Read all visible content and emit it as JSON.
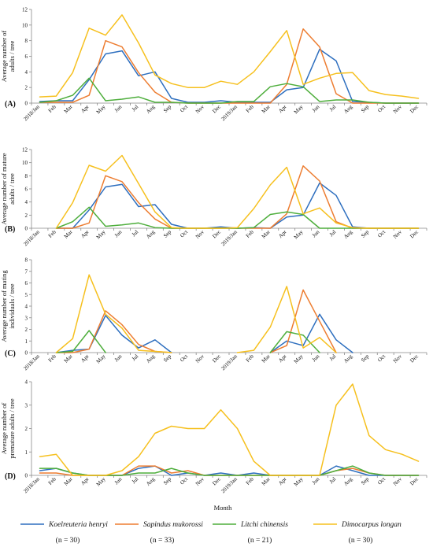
{
  "chart_data": [
    {
      "type": "line",
      "panel_label": "(A)",
      "ylabel": "Average number of adults / tree",
      "ylim": [
        0,
        12
      ],
      "yticks": [
        0,
        2,
        4,
        6,
        8,
        10,
        12
      ],
      "x": [
        "2018/Jan",
        "Feb",
        "Mar",
        "Apr",
        "May",
        "Jun",
        "Jul",
        "Aug",
        "Sep",
        "Oct",
        "Nov",
        "Dec",
        "2019/Jan",
        "Feb",
        "Mar",
        "Apr",
        "May",
        "Jun",
        "Jul",
        "Aug",
        "Sep",
        "Oct",
        "Nov",
        "Dec"
      ],
      "series": [
        {
          "name": "Koelreuteria henryi",
          "values": [
            0.2,
            0.3,
            0.3,
            3.0,
            6.3,
            6.7,
            3.5,
            4.0,
            0.6,
            0.1,
            0.1,
            0.3,
            0.1,
            0.1,
            0.1,
            1.7,
            2.0,
            6.9,
            5.4,
            0.2,
            0.1,
            0.0,
            0.0,
            0.0
          ]
        },
        {
          "name": "Sapindus mukorossi",
          "values": [
            0.1,
            0.1,
            0.1,
            1.0,
            8.0,
            7.2,
            3.9,
            1.4,
            0.1,
            0.0,
            0.0,
            0.0,
            0.0,
            0.0,
            0.0,
            2.4,
            9.5,
            7.2,
            1.2,
            0.0,
            0.0,
            0.0,
            0.0,
            0.0
          ]
        },
        {
          "name": "Litchi chinensis",
          "values": [
            0.1,
            0.3,
            1.0,
            3.2,
            0.3,
            0.5,
            0.8,
            0.1,
            0.1,
            0.0,
            0.0,
            0.0,
            0.2,
            0.2,
            2.1,
            2.5,
            2.1,
            0.2,
            0.4,
            0.4,
            0.1,
            0.0,
            0.0,
            0.0
          ]
        },
        {
          "name": "Dimocarpus longan",
          "values": [
            0.8,
            0.9,
            3.9,
            9.6,
            8.7,
            11.3,
            7.7,
            3.6,
            2.5,
            2.0,
            2.0,
            2.8,
            2.4,
            4.0,
            6.6,
            9.3,
            2.4,
            3.2,
            3.8,
            3.9,
            1.6,
            1.1,
            0.9,
            0.6
          ]
        }
      ]
    },
    {
      "type": "line",
      "panel_label": "(B)",
      "ylabel": "Average number of mature adults / tree",
      "ylim": [
        0,
        12
      ],
      "yticks": [
        0,
        2,
        4,
        6,
        8,
        10,
        12
      ],
      "x": [
        "2018/Jan",
        "Feb",
        "Mar",
        "Apr",
        "May",
        "Jun",
        "Jul",
        "Aug",
        "Sep",
        "Oct",
        "Nov",
        "Dec",
        "2019/Jan",
        "Feb",
        "Mar",
        "Apr",
        "May",
        "Jun",
        "Jul",
        "Aug",
        "Sep",
        "Oct",
        "Nov",
        "Dec"
      ],
      "series": [
        {
          "name": "Koelreuteria henryi",
          "values": [
            null,
            0.0,
            0.0,
            2.8,
            6.3,
            6.7,
            3.3,
            3.6,
            0.6,
            0.0,
            0.0,
            0.2,
            0.0,
            0.1,
            0.0,
            1.7,
            2.0,
            6.9,
            5.0,
            0.2,
            0.0,
            0.0,
            0.0,
            0.0
          ]
        },
        {
          "name": "Sapindus mukorossi",
          "values": [
            null,
            0.0,
            0.0,
            0.8,
            8.0,
            7.1,
            3.9,
            1.4,
            0.0,
            0.0,
            0.0,
            0.0,
            0.0,
            0.0,
            0.0,
            2.2,
            9.5,
            7.2,
            1.0,
            0.0,
            0.0,
            0.0,
            0.0,
            0.0
          ]
        },
        {
          "name": "Litchi chinensis",
          "values": [
            null,
            0.0,
            1.0,
            3.2,
            0.3,
            0.5,
            0.8,
            0.1,
            0.0,
            0.0,
            0.0,
            0.0,
            0.0,
            0.1,
            2.1,
            2.5,
            2.1,
            0.0,
            0.0,
            0.0,
            0.0,
            0.0,
            0.0,
            0.0
          ]
        },
        {
          "name": "Dimocarpus longan",
          "values": [
            null,
            0.0,
            3.9,
            9.6,
            8.7,
            11.1,
            6.8,
            2.5,
            0.1,
            0.0,
            0.0,
            0.0,
            0.1,
            3.0,
            6.6,
            9.3,
            2.2,
            3.1,
            0.8,
            0.1,
            0.0,
            0.0,
            0.0,
            0.0
          ]
        }
      ]
    },
    {
      "type": "line",
      "panel_label": "(C)",
      "ylabel": "Average number of mating individuals / tree",
      "ylim": [
        0,
        8
      ],
      "yticks": [
        0,
        1,
        2,
        3,
        4,
        5,
        6,
        7,
        8
      ],
      "x": [
        "2018/Jan",
        "Feb",
        "Mar",
        "Apr",
        "May",
        "Jun",
        "Jul",
        "Aug",
        "Sep",
        "Oct",
        "Nov",
        "Dec",
        "2019/Jan",
        "Feb",
        "Mar",
        "Apr",
        "May",
        "Jun",
        "Jul",
        "Aug",
        "Sep",
        "Oct",
        "Nov",
        "Dec"
      ],
      "series": [
        {
          "name": "Koelreuteria henryi",
          "values": [
            null,
            0.0,
            0.2,
            0.3,
            3.2,
            1.5,
            0.4,
            1.1,
            0.0,
            null,
            null,
            null,
            null,
            null,
            0.0,
            1.0,
            0.6,
            3.3,
            1.1,
            0.0,
            null,
            null,
            null,
            null
          ]
        },
        {
          "name": "Sapindus mukorossi",
          "values": [
            null,
            0.0,
            0.0,
            0.3,
            3.6,
            2.4,
            0.7,
            0.1,
            0.0,
            null,
            null,
            null,
            null,
            null,
            0.0,
            0.6,
            5.4,
            2.7,
            0.0,
            null,
            null,
            null,
            null,
            null
          ]
        },
        {
          "name": "Litchi chinensis",
          "values": [
            null,
            0.0,
            0.1,
            1.9,
            0.0,
            null,
            null,
            null,
            null,
            null,
            null,
            null,
            null,
            null,
            0.0,
            1.8,
            1.5,
            0.0,
            null,
            null,
            null,
            null,
            null,
            null
          ]
        },
        {
          "name": "Dimocarpus longan",
          "values": [
            null,
            0.0,
            1.2,
            6.7,
            3.3,
            2.1,
            0.2,
            0.1,
            0.0,
            null,
            null,
            null,
            0.0,
            0.2,
            2.2,
            5.7,
            0.4,
            1.3,
            0.0,
            null,
            null,
            null,
            null,
            null
          ]
        }
      ]
    },
    {
      "type": "line",
      "panel_label": "(D)",
      "ylabel": "Average number of premature adults / tree",
      "ylim": [
        0,
        4
      ],
      "yticks": [
        0,
        1,
        2,
        3,
        4
      ],
      "x": [
        "2018/Jan",
        "Feb",
        "Mar",
        "Apr",
        "May",
        "Jun",
        "Jul",
        "Aug",
        "Sep",
        "Oct",
        "Nov",
        "Dec",
        "2019/Jan",
        "Feb",
        "Mar",
        "Apr",
        "May",
        "Jun",
        "Jul",
        "Aug",
        "Sep",
        "Oct",
        "Nov",
        "Dec"
      ],
      "series": [
        {
          "name": "Koelreuteria henryi",
          "values": [
            0.2,
            0.3,
            0.1,
            0.0,
            0.0,
            0.0,
            0.3,
            0.4,
            0.0,
            0.1,
            0.0,
            0.1,
            0.0,
            0.1,
            0.0,
            0.0,
            0.0,
            0.0,
            0.4,
            0.2,
            0.0,
            0.0,
            0.0,
            0.0
          ]
        },
        {
          "name": "Sapindus mukorossi",
          "values": [
            0.1,
            0.1,
            0.0,
            0.0,
            0.0,
            0.0,
            0.4,
            0.4,
            0.1,
            0.2,
            0.0,
            0.0,
            0.0,
            0.0,
            0.0,
            0.0,
            0.0,
            0.0,
            0.2,
            0.3,
            0.1,
            0.0,
            0.0,
            0.0
          ]
        },
        {
          "name": "Litchi chinensis",
          "values": [
            0.3,
            0.3,
            0.1,
            0.0,
            0.0,
            0.0,
            0.1,
            0.1,
            0.3,
            0.1,
            0.0,
            0.0,
            0.0,
            0.0,
            0.0,
            0.0,
            0.0,
            0.0,
            0.2,
            0.4,
            0.1,
            0.0,
            0.0,
            0.0
          ]
        },
        {
          "name": "Dimocarpus longan",
          "values": [
            0.8,
            0.9,
            0.0,
            0.0,
            0.0,
            0.2,
            0.8,
            1.8,
            2.1,
            2.0,
            2.0,
            2.8,
            2.0,
            0.6,
            0.0,
            0.0,
            0.0,
            0.0,
            3.0,
            3.9,
            1.7,
            1.1,
            0.9,
            0.6
          ]
        }
      ]
    }
  ],
  "xlabel": "Month",
  "colors": {
    "Koelreuteria henryi": "#2e6fbf",
    "Sapindus mukorossi": "#ed7d31",
    "Litchi chinensis": "#4eae3c",
    "Dimocarpus longan": "#f6c01e"
  },
  "legend": [
    {
      "name": "Koelreuteria henryi",
      "n": "(n = 30)"
    },
    {
      "name": "Sapindus mukorossi",
      "n": "(n = 33)"
    },
    {
      "name": "Litchi chinensis",
      "n": "(n = 21)"
    },
    {
      "name": "Dimocarpus longan",
      "n": "(n = 30)"
    }
  ]
}
